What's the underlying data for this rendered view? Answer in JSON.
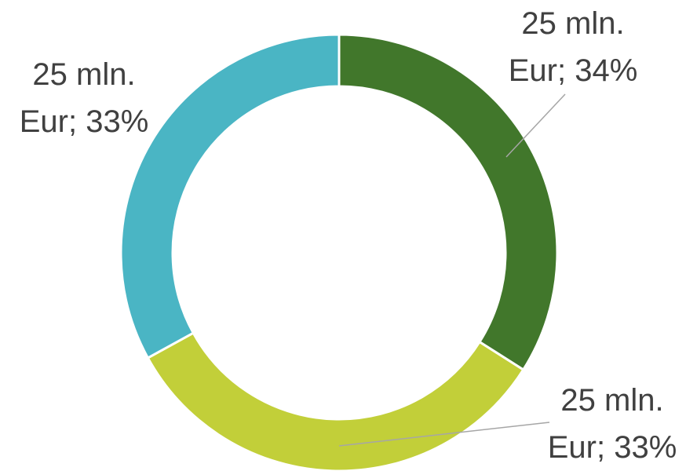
{
  "chart_data": {
    "type": "pie",
    "donut": true,
    "values": [
      34,
      33,
      33
    ],
    "value_labels": [
      "25 mln. Eur; 34%",
      "25 mln. Eur; 33%",
      "25 mln. Eur; 33%"
    ],
    "colors": [
      "#41772b",
      "#c2cf39",
      "#4ab5c4"
    ]
  }
}
